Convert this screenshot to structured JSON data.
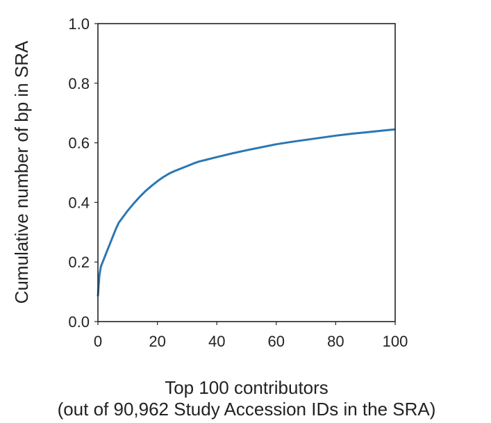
{
  "chart_data": {
    "type": "line",
    "title": "",
    "xlabel_lines": [
      "Top 100 contributors",
      "(out of 90,962 Study Accession IDs in the SRA)"
    ],
    "ylabel": "Cumulative number of bp in SRA",
    "xlim": [
      0,
      100
    ],
    "ylim": [
      0,
      1.0
    ],
    "xticks": [
      "0",
      "20",
      "40",
      "60",
      "80",
      "100"
    ],
    "yticks": [
      "0.0",
      "0.2",
      "0.4",
      "0.6",
      "0.8",
      "1.0"
    ],
    "grid": false,
    "series": [
      {
        "color": "#2a77b4",
        "x": [
          0,
          0.5,
          1,
          2,
          3,
          4,
          5,
          6,
          7,
          8,
          10,
          12,
          14,
          16,
          18,
          20,
          22,
          24,
          26,
          28,
          30,
          32,
          34,
          36,
          38,
          40,
          45,
          50,
          55,
          60,
          65,
          70,
          75,
          80,
          85,
          90,
          95,
          100
        ],
        "y": [
          0.085,
          0.155,
          0.185,
          0.21,
          0.235,
          0.26,
          0.285,
          0.31,
          0.332,
          0.345,
          0.372,
          0.396,
          0.418,
          0.438,
          0.455,
          0.471,
          0.485,
          0.497,
          0.506,
          0.514,
          0.522,
          0.53,
          0.537,
          0.542,
          0.547,
          0.552,
          0.564,
          0.575,
          0.585,
          0.595,
          0.603,
          0.61,
          0.617,
          0.624,
          0.63,
          0.635,
          0.64,
          0.645
        ]
      }
    ]
  }
}
